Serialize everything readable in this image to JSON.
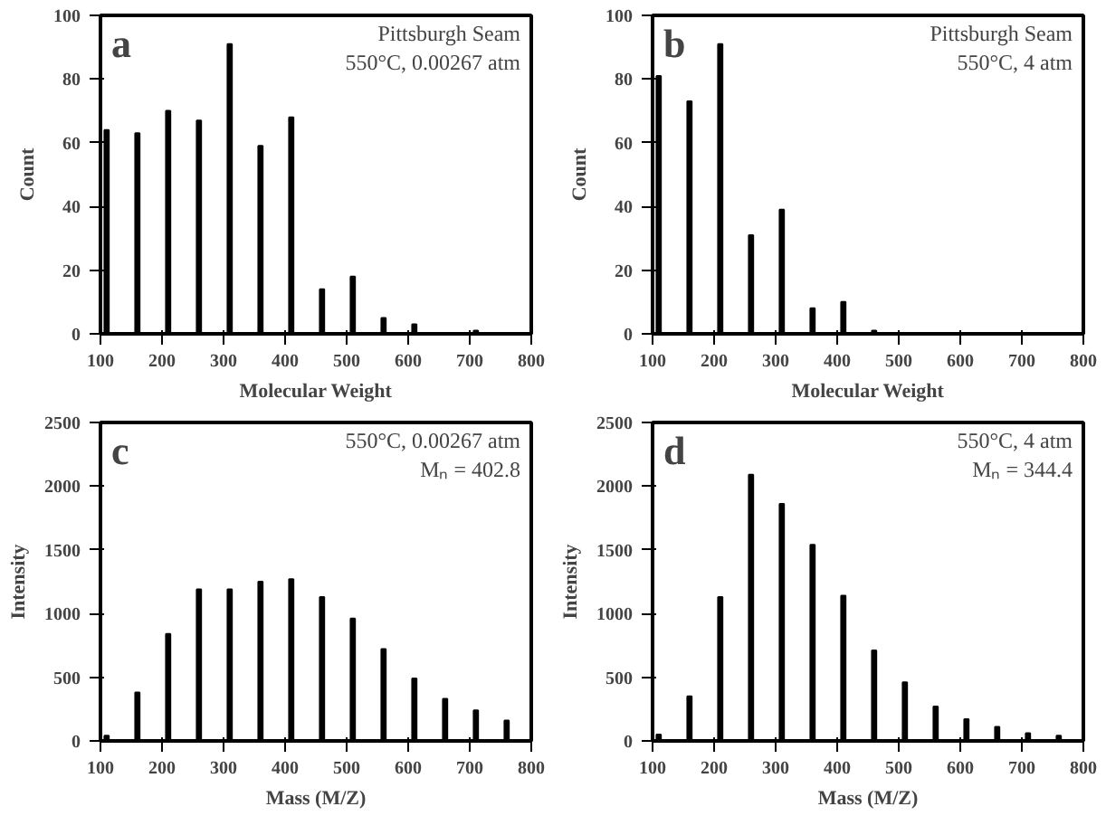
{
  "chart_data": [
    {
      "type": "bar",
      "xlabel": "Molecular Weight",
      "ylabel": "Count",
      "annotations": [
        "a",
        "Pittsburgh Seam",
        "550°C, 0.00267 atm"
      ],
      "x": [
        110,
        160,
        210,
        260,
        310,
        360,
        410,
        460,
        510,
        560,
        610,
        710
      ],
      "values": [
        64,
        63,
        70,
        67,
        91,
        59,
        68,
        14,
        18,
        5,
        3,
        1
      ],
      "color": "#000000",
      "xlim": [
        100,
        800
      ],
      "xticks": [
        100,
        200,
        300,
        400,
        500,
        600,
        700,
        800
      ],
      "ylim": [
        0,
        100
      ],
      "yticks": [
        0,
        20,
        40,
        60,
        80,
        100
      ],
      "grid": false
    },
    {
      "type": "bar",
      "xlabel": "Molecular Weight",
      "ylabel": "Count",
      "annotations": [
        "b",
        "Pittsburgh Seam",
        "550°C, 4 atm"
      ],
      "x": [
        110,
        160,
        210,
        260,
        310,
        360,
        410,
        460
      ],
      "values": [
        81,
        73,
        91,
        31,
        39,
        8,
        10,
        1
      ],
      "color": "#000000",
      "xlim": [
        100,
        800
      ],
      "xticks": [
        100,
        200,
        300,
        400,
        500,
        600,
        700,
        800
      ],
      "ylim": [
        0,
        100
      ],
      "yticks": [
        0,
        20,
        40,
        60,
        80,
        100
      ],
      "grid": false
    },
    {
      "type": "bar",
      "xlabel": "Mass (M/Z)",
      "ylabel": "Intensity",
      "annotations": [
        "c",
        "550°C, 0.00267 atm",
        "Mₙ = 402.8"
      ],
      "x": [
        110,
        160,
        210,
        260,
        310,
        360,
        410,
        460,
        510,
        560,
        610,
        660,
        710,
        760
      ],
      "values": [
        40,
        380,
        840,
        1190,
        1190,
        1250,
        1270,
        1130,
        960,
        720,
        490,
        330,
        240,
        160
      ],
      "color": "#000000",
      "xlim": [
        100,
        800
      ],
      "xticks": [
        100,
        200,
        300,
        400,
        500,
        600,
        700,
        800
      ],
      "ylim": [
        0,
        2500
      ],
      "yticks": [
        0,
        500,
        1000,
        1500,
        2000,
        2500
      ],
      "grid": false
    },
    {
      "type": "bar",
      "xlabel": "Mass (M/Z)",
      "ylabel": "Intensity",
      "annotations": [
        "d",
        "550°C, 4 atm",
        "Mₙ = 344.4"
      ],
      "x": [
        110,
        160,
        210,
        260,
        310,
        360,
        410,
        460,
        510,
        560,
        610,
        660,
        710,
        760
      ],
      "values": [
        50,
        350,
        1130,
        2090,
        1860,
        1540,
        1140,
        710,
        460,
        270,
        170,
        110,
        60,
        40
      ],
      "color": "#000000",
      "xlim": [
        100,
        800
      ],
      "xticks": [
        100,
        200,
        300,
        400,
        500,
        600,
        700,
        800
      ],
      "ylim": [
        0,
        2500
      ],
      "yticks": [
        0,
        500,
        1000,
        1500,
        2000,
        2500
      ],
      "grid": false
    }
  ]
}
